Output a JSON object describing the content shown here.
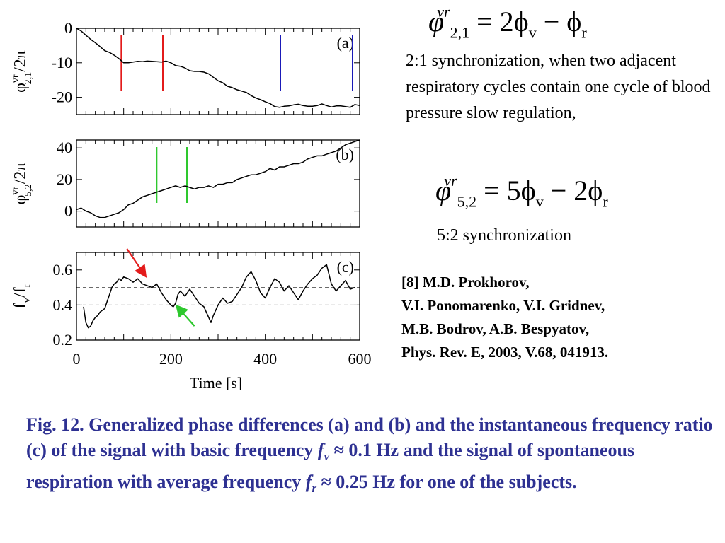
{
  "chart_data": [
    {
      "type": "line",
      "panel_label": "(a)",
      "ylabel_parts": {
        "base": "φ",
        "sup": "vr",
        "sub": "2,1",
        "rest": "/2π"
      },
      "ylim": [
        -25,
        0
      ],
      "yticks": [
        0,
        -10,
        -20
      ],
      "ytick_labels": [
        "0",
        "-10",
        "-20"
      ],
      "xlim": [
        0,
        600
      ],
      "series": [
        {
          "values_x": [
            0,
            10,
            20,
            30,
            40,
            50,
            60,
            70,
            80,
            90,
            100,
            110,
            120,
            130,
            140,
            150,
            160,
            170,
            180,
            190,
            200,
            210,
            220,
            230,
            240,
            250,
            260,
            270,
            280,
            290,
            300,
            310,
            320,
            330,
            340,
            350,
            360,
            370,
            380,
            390,
            400,
            410,
            420,
            430,
            440,
            450,
            460,
            470,
            480,
            490,
            500,
            510,
            520,
            530,
            540,
            550,
            560,
            570,
            580,
            590,
            600
          ],
          "values_y": [
            0,
            -0.8,
            -2,
            -3.2,
            -4.2,
            -5.3,
            -6.5,
            -7,
            -7.8,
            -8.8,
            -10,
            -10,
            -9.8,
            -9.6,
            -9.7,
            -9.5,
            -9.6,
            -9.7,
            -9.8,
            -9.5,
            -10,
            -10.8,
            -11,
            -11.5,
            -12.3,
            -12.5,
            -12.5,
            -12.7,
            -13.2,
            -14.2,
            -15.2,
            -15.8,
            -16.8,
            -17.2,
            -17.8,
            -18.2,
            -18.6,
            -19.5,
            -20.2,
            -20.7,
            -21.3,
            -21.8,
            -22.7,
            -22.9,
            -22.6,
            -22.5,
            -22.2,
            -22,
            -22.4,
            -22.6,
            -22.6,
            -22.4,
            -21.9,
            -22.4,
            -22.8,
            -22.5,
            -22.5,
            -22.7,
            -22.9,
            -22.1,
            -22.4
          ]
        }
      ],
      "markers": [
        {
          "x": 95,
          "color": "#e31b1b"
        },
        {
          "x": 183,
          "color": "#e31b1b"
        },
        {
          "x": 432,
          "color": "#1a1ab8"
        },
        {
          "x": 585,
          "color": "#1a1ab8"
        }
      ]
    },
    {
      "type": "line",
      "panel_label": "(b)",
      "ylabel_parts": {
        "base": "φ",
        "sup": "vr",
        "sub": "5,2",
        "rest": "/2π"
      },
      "ylim": [
        -10,
        45
      ],
      "yticks": [
        0,
        20,
        40
      ],
      "ytick_labels": [
        "0",
        "20",
        "40"
      ],
      "xlim": [
        0,
        600
      ],
      "series": [
        {
          "values_x": [
            0,
            10,
            20,
            30,
            40,
            50,
            60,
            70,
            80,
            90,
            100,
            110,
            120,
            130,
            140,
            150,
            160,
            170,
            180,
            190,
            200,
            210,
            220,
            230,
            240,
            250,
            260,
            270,
            280,
            290,
            300,
            310,
            320,
            330,
            340,
            350,
            360,
            370,
            380,
            390,
            400,
            410,
            420,
            430,
            440,
            450,
            460,
            470,
            480,
            490,
            500,
            510,
            520,
            530,
            540,
            550,
            560,
            570,
            580,
            590,
            600
          ],
          "values_y": [
            1,
            2,
            0,
            -1,
            -3,
            -4,
            -4,
            -3,
            -2,
            -1,
            1,
            4,
            5,
            7,
            9,
            10,
            11,
            12,
            13,
            14,
            15,
            16,
            15,
            16,
            15,
            14,
            15,
            15,
            16,
            15,
            17,
            17,
            18,
            18,
            20,
            21,
            22,
            23,
            23,
            24,
            25,
            27,
            26,
            28,
            28,
            29,
            30,
            30,
            31,
            33,
            34,
            35,
            35,
            36,
            37,
            38,
            40,
            42,
            43,
            44,
            45
          ]
        }
      ],
      "markers": [
        {
          "x": 170,
          "color": "#2ec82e"
        },
        {
          "x": 234,
          "color": "#2ec82e"
        }
      ]
    },
    {
      "type": "line",
      "panel_label": "(c)",
      "ylabel_parts": {
        "base": "f",
        "sub1": "v",
        "mid": "/f",
        "sub2": "r"
      },
      "ylim": [
        0.2,
        0.7
      ],
      "yticks": [
        0.2,
        0.4,
        0.6
      ],
      "ytick_labels": [
        "0.2",
        "0.4",
        "0.6"
      ],
      "xlim": [
        0,
        600
      ],
      "xticks": [
        0,
        200,
        400,
        600
      ],
      "xtick_labels": [
        "0",
        "200",
        "400",
        "600"
      ],
      "xlabel": "Time [s]",
      "hlines": [
        0.4,
        0.5
      ],
      "series": [
        {
          "values_x": [
            15,
            20,
            25,
            30,
            35,
            40,
            45,
            50,
            55,
            60,
            65,
            70,
            75,
            80,
            85,
            90,
            95,
            100,
            110,
            120,
            130,
            140,
            150,
            160,
            170,
            180,
            190,
            200,
            205,
            210,
            215,
            220,
            230,
            240,
            250,
            260,
            270,
            280,
            285,
            290,
            300,
            310,
            320,
            330,
            340,
            350,
            360,
            370,
            380,
            390,
            400,
            410,
            420,
            430,
            440,
            450,
            460,
            470,
            480,
            490,
            500,
            510,
            520,
            530,
            540,
            550,
            560,
            570,
            580,
            590
          ],
          "values_y": [
            0.39,
            0.3,
            0.27,
            0.28,
            0.31,
            0.33,
            0.34,
            0.36,
            0.37,
            0.38,
            0.42,
            0.46,
            0.5,
            0.52,
            0.53,
            0.55,
            0.54,
            0.56,
            0.55,
            0.53,
            0.55,
            0.52,
            0.51,
            0.5,
            0.52,
            0.47,
            0.43,
            0.4,
            0.39,
            0.41,
            0.46,
            0.48,
            0.45,
            0.49,
            0.45,
            0.41,
            0.39,
            0.33,
            0.3,
            0.34,
            0.4,
            0.44,
            0.41,
            0.42,
            0.46,
            0.5,
            0.56,
            0.59,
            0.54,
            0.47,
            0.44,
            0.5,
            0.55,
            0.53,
            0.48,
            0.51,
            0.47,
            0.43,
            0.48,
            0.52,
            0.55,
            0.57,
            0.61,
            0.63,
            0.52,
            0.48,
            0.51,
            0.54,
            0.49,
            0.5
          ]
        }
      ],
      "arrows": [
        {
          "color": "#e31b1b"
        },
        {
          "color": "#2ec82e"
        }
      ]
    }
  ],
  "formula1": {
    "lhs": "φ",
    "sup": "vr",
    "sub": "2,1",
    "rhs_a": "= 2ϕ",
    "sub_v": "v",
    "rhs_b": "− ϕ",
    "sub_r": "r"
  },
  "formula2": {
    "lhs": "φ",
    "sup": "vr",
    "sub": "5,2",
    "rhs_a": "= 5ϕ",
    "sub_v": "v",
    "rhs_b": "− 2ϕ",
    "sub_r": "r"
  },
  "note1": "2:1 synchronization, when two adjacent respiratory cycles contain one cycle of blood pressure slow regulation,",
  "note2": "5:2 synchronization",
  "reference": {
    "line1": "[8] M.D. Prokhorov,",
    "line2": "V.I. Ponomarenko, V.I. Gridnev,",
    "line3": "M.B.  Bodrov, A.B. Bespyatov,",
    "line4": "Phys. Rev. E, 2003, V.68, 041913."
  },
  "caption": {
    "part1": "Fig. 12. Generalized phase differences  (a) and  (b) and the instantaneous frequency ratio (c) of the signal with basic frequency ",
    "fv": "f",
    "fv_sub": "v",
    "part2": " ≈ 0.1 Hz and the signal of spontaneous respiration with average frequency ",
    "fr": "f",
    "fr_sub": "r",
    "part3": " ≈ 0.25 Hz for one of the subjects."
  },
  "colors": {
    "caption": "#2e3192",
    "red": "#e31b1b",
    "blue": "#1a1ab8",
    "green": "#2ec82e"
  }
}
